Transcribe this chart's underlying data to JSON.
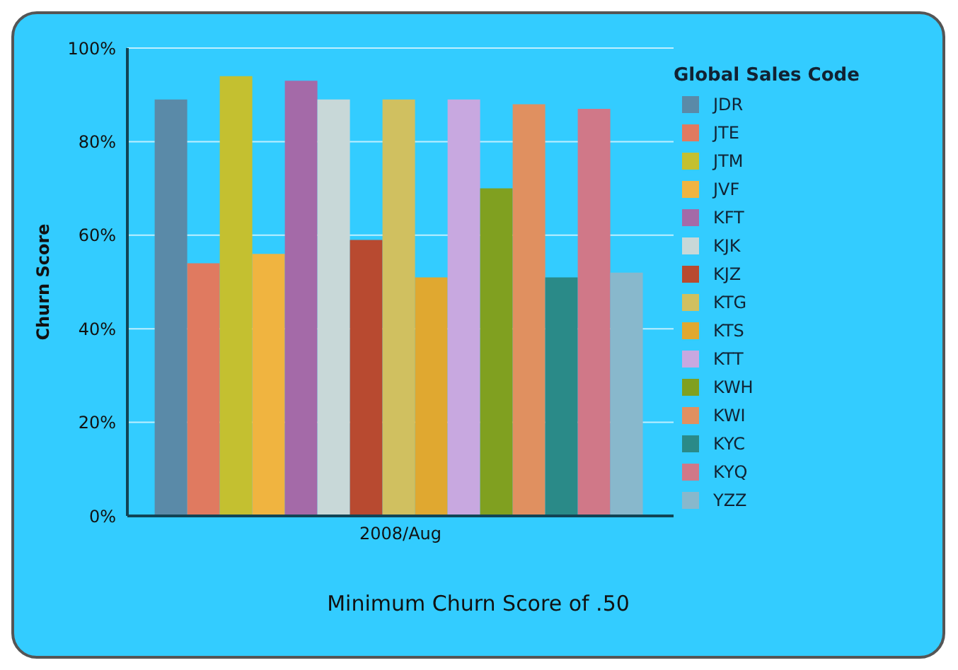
{
  "chart_data": {
    "type": "bar",
    "ylabel": "Churn Score",
    "legend_title": "Global Sales Code",
    "categories": [
      "2008/Aug"
    ],
    "series": [
      {
        "name": "JDR",
        "color": "#5a8aa8",
        "values": [
          89
        ]
      },
      {
        "name": "JTE",
        "color": "#e07a60",
        "values": [
          54
        ]
      },
      {
        "name": "JTM",
        "color": "#c4c030",
        "values": [
          94
        ]
      },
      {
        "name": "JVF",
        "color": "#f0b440",
        "values": [
          56
        ]
      },
      {
        "name": "KFT",
        "color": "#a46aa8",
        "values": [
          93
        ]
      },
      {
        "name": "KJK",
        "color": "#c8d8d8",
        "values": [
          89
        ]
      },
      {
        "name": "KJZ",
        "color": "#b84a30",
        "values": [
          59
        ]
      },
      {
        "name": "KTG",
        "color": "#d0c060",
        "values": [
          89
        ]
      },
      {
        "name": "KTS",
        "color": "#e0a830",
        "values": [
          51
        ]
      },
      {
        "name": "KTT",
        "color": "#c8a8e0",
        "values": [
          89
        ]
      },
      {
        "name": "KWH",
        "color": "#80a020",
        "values": [
          70
        ]
      },
      {
        "name": "KWI",
        "color": "#e09060",
        "values": [
          88
        ]
      },
      {
        "name": "KYC",
        "color": "#2a8a88",
        "values": [
          51
        ]
      },
      {
        "name": "KYQ",
        "color": "#d07888",
        "values": [
          87
        ]
      },
      {
        "name": "YZZ",
        "color": "#88b8cc",
        "values": [
          52
        ]
      }
    ],
    "ylim": [
      0,
      100
    ],
    "yticks": [
      {
        "value": 0,
        "label": "0%"
      },
      {
        "value": 20,
        "label": "20%"
      },
      {
        "value": 40,
        "label": "40%"
      },
      {
        "value": 60,
        "label": "60%"
      },
      {
        "value": 80,
        "label": "80%"
      },
      {
        "value": 100,
        "label": "100%"
      }
    ],
    "grid": "y",
    "legend": "right",
    "annotations": [
      "Minimum Churn Score of .50"
    ]
  }
}
